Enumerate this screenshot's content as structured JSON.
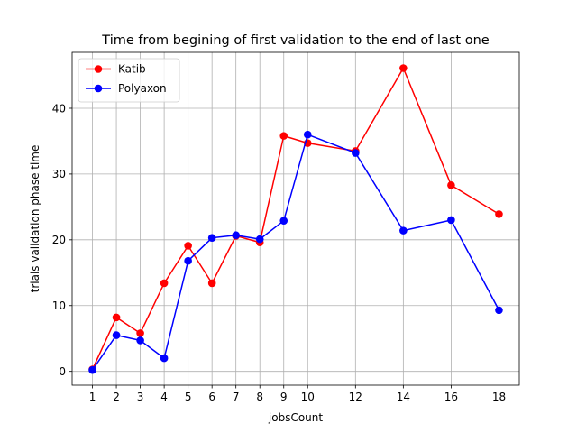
{
  "chart_data": {
    "type": "line",
    "title": "Time from begining of first validation to the end of last one",
    "xlabel": "jobsCount",
    "ylabel": "trials validation phase time",
    "x": [
      1,
      2,
      3,
      4,
      5,
      6,
      7,
      8,
      9,
      10,
      12,
      14,
      16,
      18
    ],
    "x_ticks": [
      "1",
      "2",
      "3",
      "4",
      "5",
      "6",
      "7",
      "8",
      "9",
      "10",
      "12",
      "14",
      "16",
      "18"
    ],
    "y_ticks": [
      0,
      10,
      20,
      30,
      40
    ],
    "xlim": [
      0.15,
      18.85
    ],
    "ylim": [
      -2.1,
      48.5
    ],
    "grid": true,
    "legend_position": "top-left",
    "series": [
      {
        "name": "Katib",
        "color": "#ff0000",
        "values": [
          0.3,
          8.2,
          5.8,
          13.4,
          19.1,
          13.4,
          20.6,
          19.6,
          35.8,
          34.7,
          33.5,
          46.1,
          28.3,
          23.9
        ]
      },
      {
        "name": "Polyaxon",
        "color": "#0000ff",
        "values": [
          0.2,
          5.5,
          4.7,
          2.0,
          16.8,
          20.3,
          20.7,
          20.1,
          22.9,
          36.0,
          33.2,
          21.4,
          23.0,
          9.3
        ]
      }
    ]
  }
}
